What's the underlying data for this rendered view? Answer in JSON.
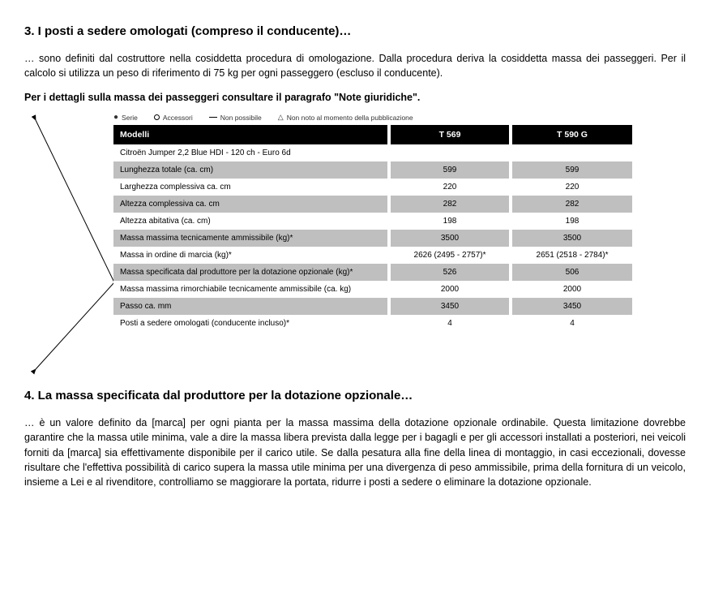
{
  "section3": {
    "title": "3. I posti a sedere omologati (compreso il conducente)…",
    "para": "… sono definiti dal costruttore nella cosiddetta procedura di omologazione. Dalla procedura deriva la cosiddetta massa dei passeggeri. Per il calcolo si utilizza un peso di riferimento di 75 kg per ogni passeggero (escluso il conducente).",
    "bold": "Per i dettagli sulla massa dei passeggeri consultare il paragrafo \"Note giuridiche\"."
  },
  "legend": {
    "serie": "Serie",
    "accessori": "Accessori",
    "nonposs": "Non possibile",
    "nonnoto": "Non noto al momento della pubblicazione"
  },
  "table": {
    "header_model": "Modelli",
    "header_col1": "T 569",
    "header_col2": "T 590 G",
    "rows": [
      {
        "label": "Citroën Jumper 2,2 Blue HDI - 120 ch - Euro 6d",
        "v1": "",
        "v2": "",
        "shade": "white"
      },
      {
        "label": "Lunghezza totale (ca. cm)",
        "v1": "599",
        "v2": "599",
        "shade": "grey"
      },
      {
        "label": "Larghezza complessiva ca. cm",
        "v1": "220",
        "v2": "220",
        "shade": "white"
      },
      {
        "label": "Altezza complessiva ca. cm",
        "v1": "282",
        "v2": "282",
        "shade": "grey"
      },
      {
        "label": "Altezza abitativa (ca. cm)",
        "v1": "198",
        "v2": "198",
        "shade": "white"
      },
      {
        "label": "Massa massima tecnicamente ammissibile (kg)*",
        "v1": "3500",
        "v2": "3500",
        "shade": "grey"
      },
      {
        "label": "Massa in ordine di marcia (kg)*",
        "v1": "2626 (2495 - 2757)*",
        "v2": "2651 (2518 - 2784)*",
        "shade": "white"
      },
      {
        "label": "Massa specificata dal produttore per la dotazione opzionale (kg)*",
        "v1": "526",
        "v2": "506",
        "shade": "grey"
      },
      {
        "label": "Massa massima rimorchiabile tecnicamente ammissibile (ca. kg)",
        "v1": "2000",
        "v2": "2000",
        "shade": "white"
      },
      {
        "label": "Passo ca. mm",
        "v1": "3450",
        "v2": "3450",
        "shade": "grey"
      },
      {
        "label": "Posti a sedere omologati (conducente incluso)*",
        "v1": "4",
        "v2": "4",
        "shade": "white"
      }
    ]
  },
  "section4": {
    "title": "4. La massa specificata dal produttore per la dotazione opzionale…",
    "para": "… è un valore definito da [marca] per ogni pianta per la massa massima della dotazione opzionale ordinabile. Questa limitazione dovrebbe garantire che la massa utile minima, vale a dire la massa libera prevista dalla legge per i bagagli e per gli accessori installati a posteriori, nei veicoli forniti da [marca] sia effettivamente disponibile per il carico utile. Se dalla pesatura alla fine della linea di montaggio, in casi eccezionali, dovesse risultare che l'effettiva possibilità di carico supera la massa utile minima  per una divergenza di peso ammissibile, prima della fornitura di un veicolo, insieme a Lei e al rivenditore, controlliamo se maggiorare la portata, ridurre i posti a sedere o eliminare la dotazione opzionale."
  },
  "style": {
    "bg": "#ffffff",
    "text": "#000000",
    "header_bg": "#000000",
    "header_fg": "#ffffff",
    "row_grey": "#bfbfbf",
    "row_white": "#ffffff",
    "arrow_stroke": "#000000"
  }
}
